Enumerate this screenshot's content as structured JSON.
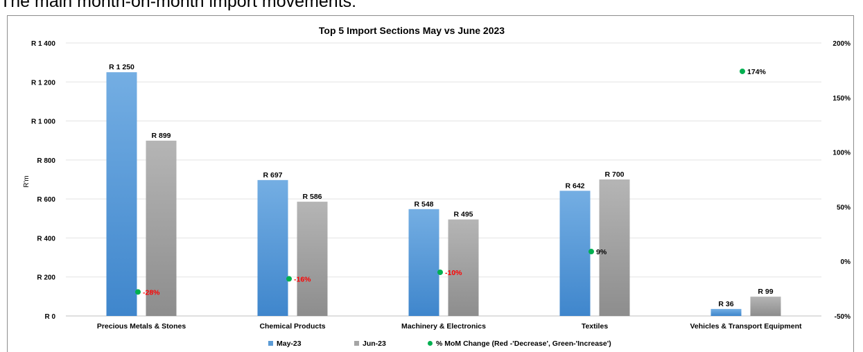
{
  "page": {
    "heading": "The main month-on-month import movements:"
  },
  "chart_data": {
    "type": "bar",
    "title": "Top 5 Import Sections May vs June 2023",
    "ylabel": "R'm",
    "ylim": [
      0,
      1400
    ],
    "y_ticks": [
      0,
      200,
      400,
      600,
      800,
      1000,
      1200,
      1400
    ],
    "y_tick_labels": [
      "R 0",
      "R 200",
      "R 400",
      "R 600",
      "R 800",
      "R 1 000",
      "R 1 200",
      "R 1 400"
    ],
    "y2lim": [
      -50,
      200
    ],
    "y2_ticks": [
      -50,
      0,
      50,
      100,
      150,
      200
    ],
    "y2_tick_labels": [
      "-50%",
      "0%",
      "50%",
      "100%",
      "150%",
      "200%"
    ],
    "grid": true,
    "legend_position": "bottom",
    "categories": [
      "Precious Metals & Stones",
      "Chemical Products",
      "Machinery & Electronics",
      "Textiles",
      "Vehicles & Transport Equipment"
    ],
    "series": [
      {
        "name": "May-23",
        "color": "#5b9bd5",
        "values": [
          1250,
          697,
          548,
          642,
          36
        ],
        "labels": [
          "R 1 250",
          "R 697",
          "R 548",
          "R 642",
          "R 36"
        ]
      },
      {
        "name": "Jun-23",
        "color": "#a5a5a5",
        "values": [
          899,
          586,
          495,
          700,
          99
        ],
        "labels": [
          "R 899",
          "R 586",
          "R 495",
          "R 700",
          "R 99"
        ]
      },
      {
        "name": "% MoM Change (Red -'Decrease', Green-'Increase')",
        "type": "scatter",
        "axis": "secondary",
        "color": "#00b050",
        "values": [
          -28,
          -16,
          -10,
          9,
          174
        ],
        "labels": [
          "-28%",
          "-16%",
          "-10%",
          "9%",
          "174%"
        ],
        "label_colors": [
          "#ff0000",
          "#ff0000",
          "#ff0000",
          "#000000",
          "#000000"
        ]
      }
    ]
  }
}
